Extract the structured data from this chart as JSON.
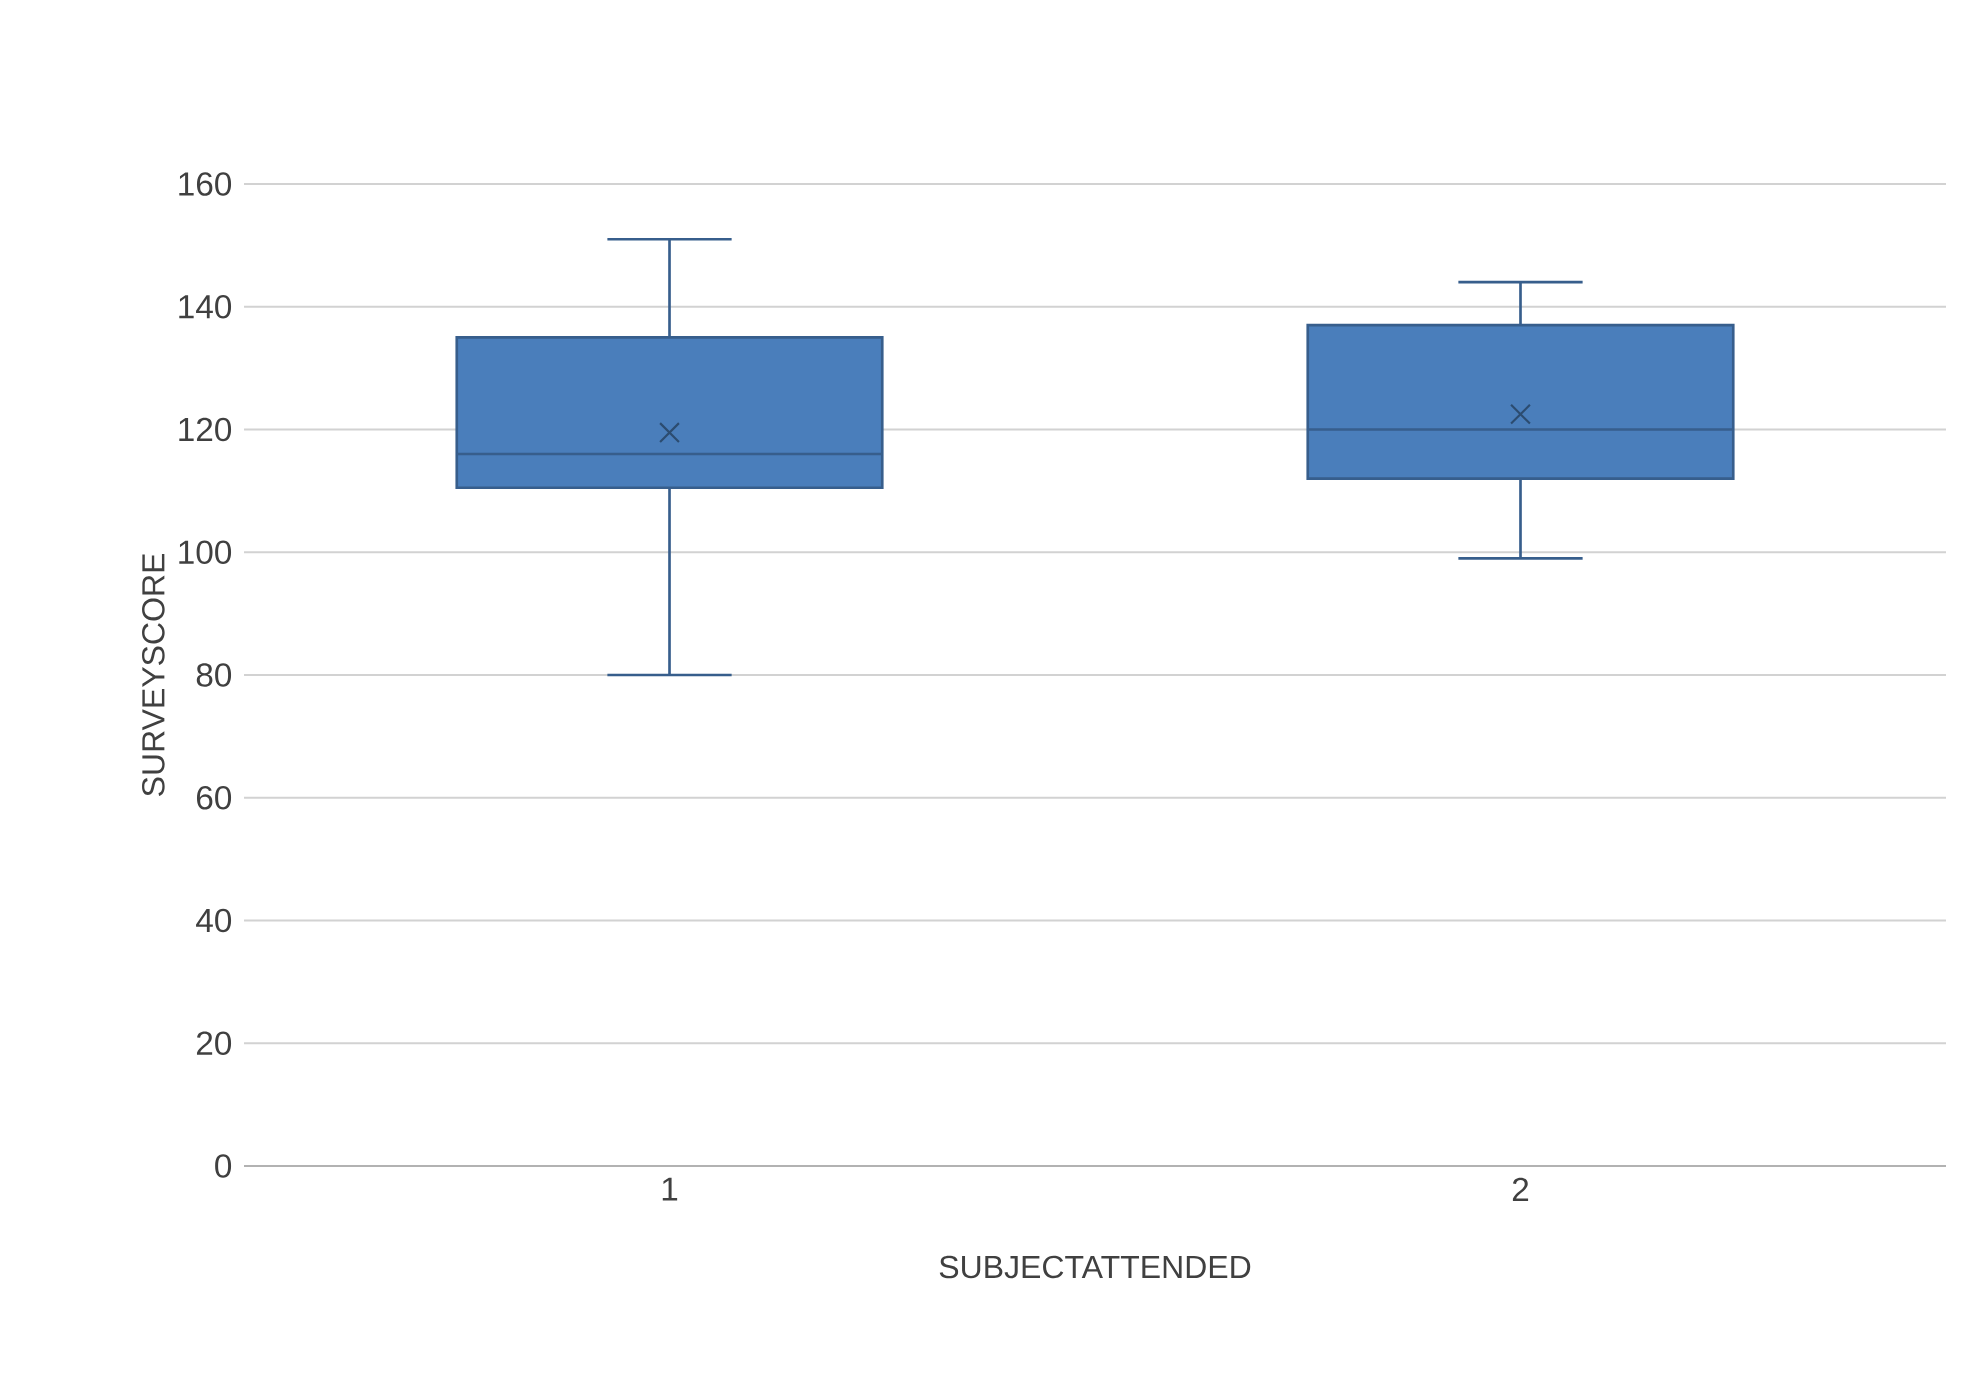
{
  "chart_data": {
    "type": "box",
    "xlabel": "SUBJECTATTENDED",
    "ylabel": "SURVEYSCORE",
    "categories": [
      "1",
      "2"
    ],
    "boxes": [
      {
        "low": 80,
        "q1": 110.5,
        "median": 116,
        "q3": 135,
        "high": 151,
        "mean": 119.5
      },
      {
        "low": 99,
        "q1": 112,
        "median": 120,
        "q3": 137,
        "high": 144,
        "mean": 122.5
      }
    ],
    "color": "#4a7ebb",
    "ylim": [
      0,
      160
    ],
    "yticks": [
      0,
      20,
      40,
      60,
      80,
      100,
      120,
      140,
      160
    ],
    "grid": "y"
  }
}
